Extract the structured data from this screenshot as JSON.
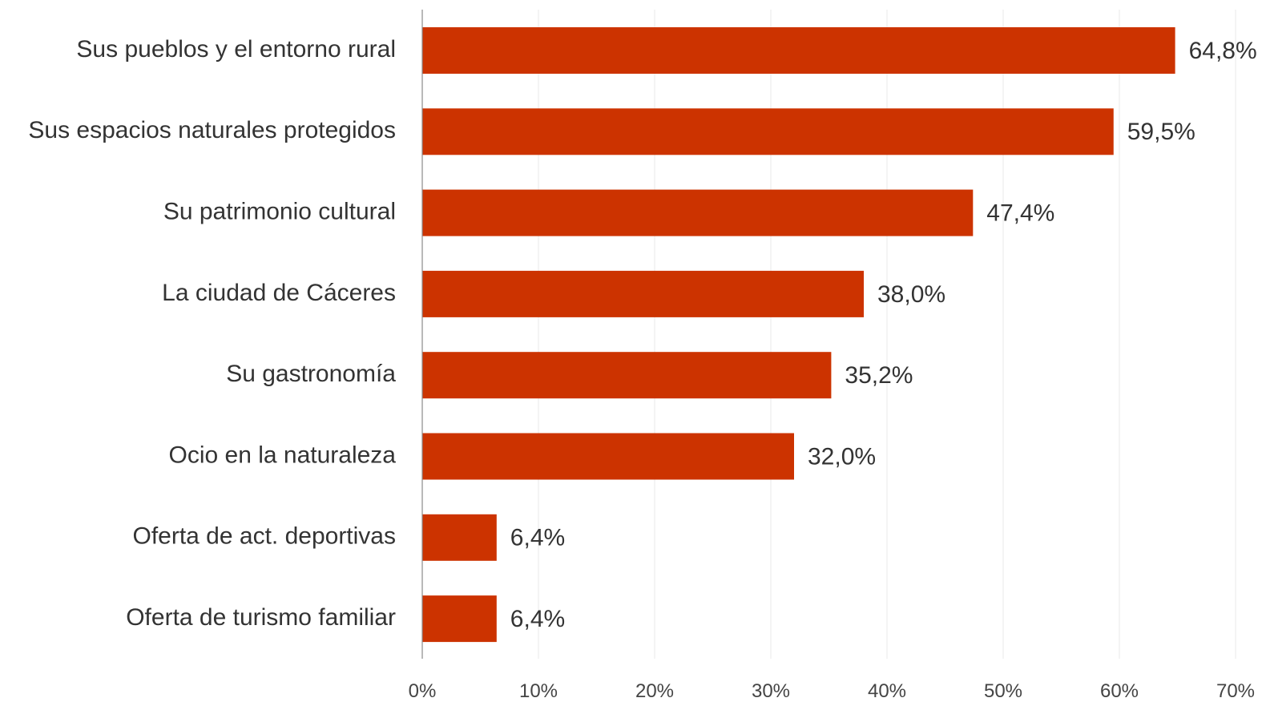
{
  "chart_data": {
    "type": "bar",
    "orientation": "horizontal",
    "categories": [
      "Sus pueblos y el entorno rural",
      "Sus espacios naturales protegidos",
      "Su patrimonio cultural",
      "La ciudad de Cáceres",
      "Su gastronomía",
      "Ocio en la naturaleza",
      "Oferta de act. deportivas",
      "Oferta de turismo familiar"
    ],
    "values": [
      64.8,
      59.5,
      47.4,
      38.0,
      35.2,
      32.0,
      6.4,
      6.4
    ],
    "value_labels": [
      "64,8%",
      "59,5%",
      "47,4%",
      "38,0%",
      "35,2%",
      "32,0%",
      "6,4%",
      "6,4%"
    ],
    "x_ticks": [
      0,
      10,
      20,
      30,
      40,
      50,
      60,
      70
    ],
    "x_tick_labels": [
      "0%",
      "10%",
      "20%",
      "30%",
      "40%",
      "50%",
      "60%",
      "70%"
    ],
    "xlim": [
      0,
      70
    ],
    "title": "",
    "xlabel": "",
    "ylabel": "",
    "grid": true,
    "legend": false,
    "colors": {
      "bar": "#cc3300",
      "text": "#333333",
      "grid": "#e8e8e8",
      "axis": "#8a8a8a"
    }
  }
}
